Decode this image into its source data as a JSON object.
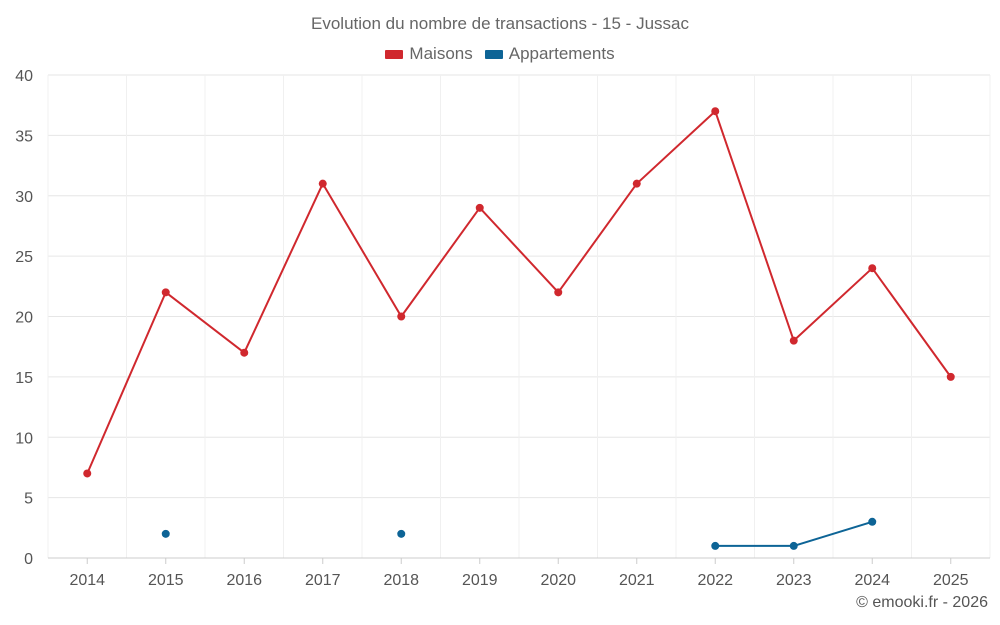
{
  "chart_data": {
    "type": "line",
    "title": "Evolution du nombre de transactions - 15 - Jussac",
    "xlabel": "",
    "ylabel": "",
    "categories": [
      "2014",
      "2015",
      "2016",
      "2017",
      "2018",
      "2019",
      "2020",
      "2021",
      "2022",
      "2023",
      "2024",
      "2025"
    ],
    "ylim": [
      0,
      40
    ],
    "yticks": [
      0,
      5,
      10,
      15,
      20,
      25,
      30,
      35,
      40
    ],
    "grid": true,
    "legend_position": "top-center",
    "series": [
      {
        "name": "Maisons",
        "color": "#d0282e",
        "values": [
          7,
          22,
          17,
          31,
          20,
          29,
          22,
          31,
          37,
          18,
          24,
          15
        ]
      },
      {
        "name": "Appartements",
        "color": "#0d6496",
        "values": [
          null,
          2,
          null,
          null,
          2,
          null,
          null,
          null,
          1,
          1,
          3,
          null
        ]
      }
    ]
  },
  "footer": {
    "credit": "© emooki.fr - 2026"
  }
}
